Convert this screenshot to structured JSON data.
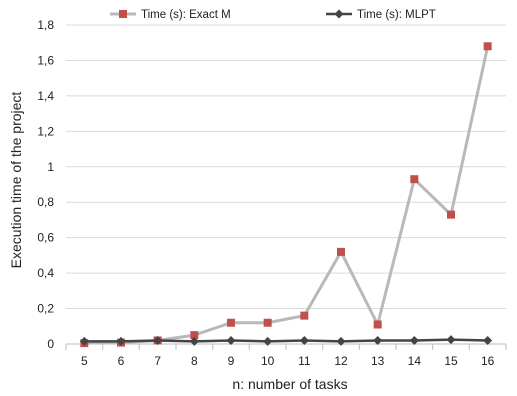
{
  "chart_data": {
    "type": "line",
    "title": "",
    "xlabel": "n: number of tasks",
    "ylabel": "Execution time of the project",
    "categories": [
      "5",
      "6",
      "7",
      "8",
      "9",
      "10",
      "11",
      "12",
      "13",
      "14",
      "15",
      "16"
    ],
    "ylim": [
      0,
      1.8
    ],
    "yticks": [
      "0",
      "0,2",
      "0,4",
      "0,6",
      "0,8",
      "1",
      "1,2",
      "1,4",
      "1,6",
      "1,8"
    ],
    "ytick_values": [
      0,
      0.2,
      0.4,
      0.6,
      0.8,
      1.0,
      1.2,
      1.4,
      1.6,
      1.8
    ],
    "grid": "horizontal",
    "legend_position": "top",
    "series": [
      {
        "name": "Time (s): Exact M",
        "marker": "square",
        "line_color": "#b9b9b9",
        "marker_color": "#c0504d",
        "values": [
          0.005,
          0.008,
          0.02,
          0.05,
          0.12,
          0.12,
          0.16,
          0.52,
          0.11,
          0.93,
          0.73,
          1.68
        ]
      },
      {
        "name": "Time (s): MLPT",
        "marker": "diamond",
        "line_color": "#444444",
        "marker_color": "#444444",
        "values": [
          0.015,
          0.015,
          0.02,
          0.015,
          0.02,
          0.015,
          0.02,
          0.015,
          0.02,
          0.02,
          0.025,
          0.02
        ]
      }
    ]
  }
}
